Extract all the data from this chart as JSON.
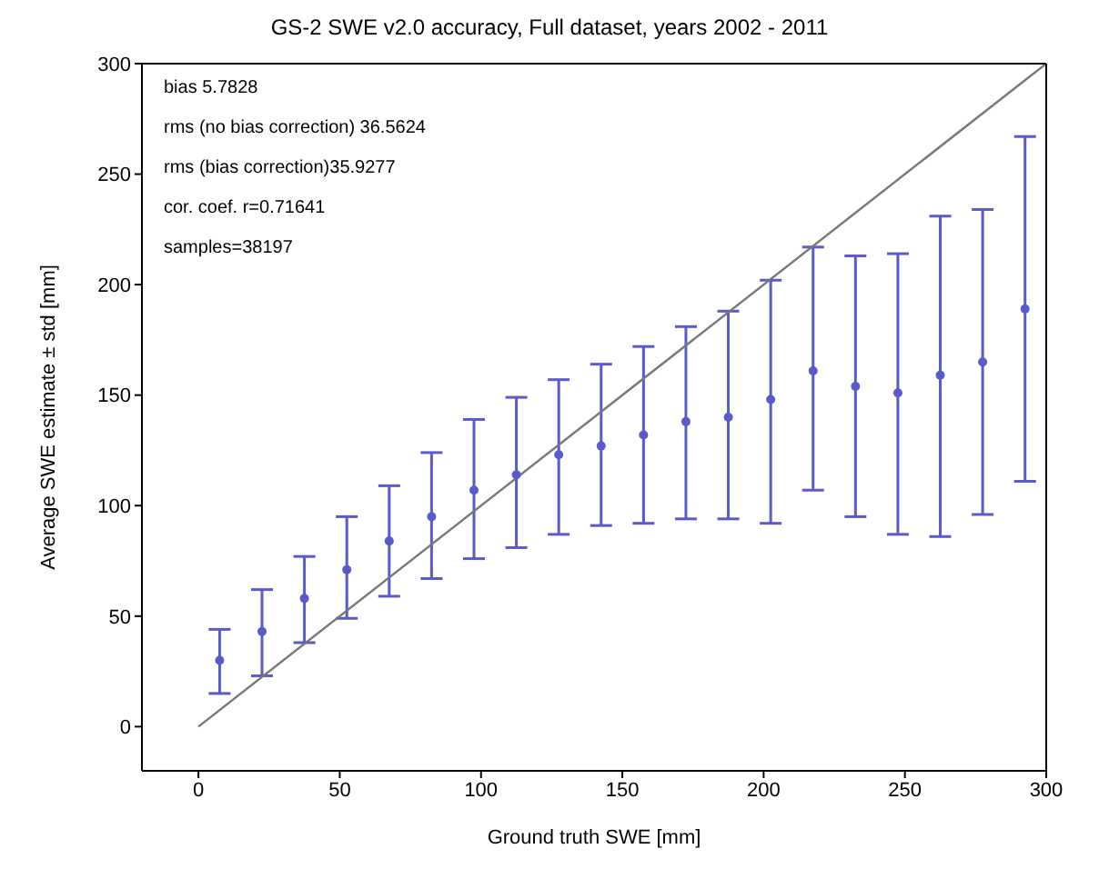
{
  "chart_data": {
    "type": "scatter",
    "title": "GS-2 SWE v2.0 accuracy, Full dataset, years 2002 - 2011",
    "xlabel": "Ground truth SWE [mm]",
    "ylabel": "Average SWE estimate ± std [mm]",
    "annotations": [
      "bias 5.7828",
      "rms (no bias correction) 36.5624",
      "rms (bias correction)35.9277",
      "cor. coef. r=0.71641",
      "samples=38197"
    ],
    "xlim": [
      -20,
      300
    ],
    "xticks": [
      0,
      50,
      100,
      150,
      200,
      250,
      300
    ],
    "ylim": [
      -20,
      300
    ],
    "yticks": [
      0,
      50,
      100,
      150,
      200,
      250,
      300
    ],
    "grid": false,
    "marker": "circle",
    "series": [
      {
        "color": "#5a5acc",
        "x": [
          7.5,
          22.5,
          37.5,
          52.5,
          67.5,
          82.5,
          97.5,
          112.5,
          127.5,
          142.5,
          157.5,
          172.5,
          187.5,
          202.5,
          217.5,
          232.5,
          247.5,
          262.5,
          277.5,
          292.5
        ],
        "values": [
          30,
          43,
          58,
          71,
          84,
          95,
          107,
          114,
          123,
          127,
          132,
          138,
          140,
          148,
          161,
          154,
          151,
          159,
          165,
          189
        ],
        "errors": [
          [
            15,
            44
          ],
          [
            23,
            62
          ],
          [
            38,
            77
          ],
          [
            49,
            95
          ],
          [
            59,
            109
          ],
          [
            67,
            124
          ],
          [
            76,
            139
          ],
          [
            81,
            149
          ],
          [
            87,
            157
          ],
          [
            91,
            164
          ],
          [
            92,
            172
          ],
          [
            94,
            181
          ],
          [
            94,
            188
          ],
          [
            92,
            202
          ],
          [
            107,
            217
          ],
          [
            95,
            213
          ],
          [
            87,
            214
          ],
          [
            86,
            231
          ],
          [
            96,
            234
          ],
          [
            111,
            267
          ]
        ]
      },
      {
        "type": "line",
        "color": "#777777",
        "x": [
          0,
          300
        ],
        "values": [
          0,
          300
        ],
        "marker": "none"
      }
    ]
  }
}
